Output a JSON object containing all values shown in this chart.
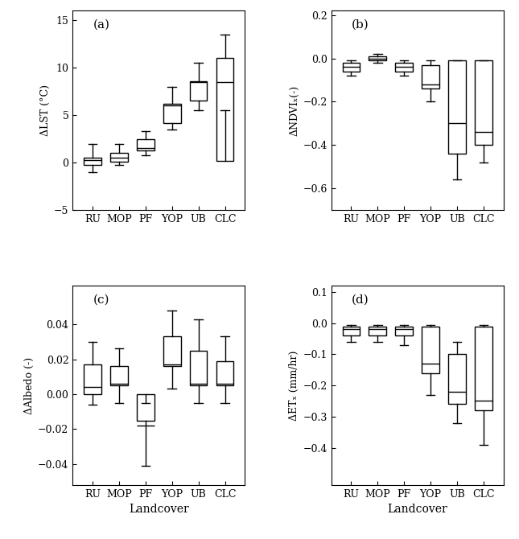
{
  "categories": [
    "RU",
    "MOP",
    "PF",
    "YOP",
    "UB",
    "CLC"
  ],
  "panel_a": {
    "ylabel": "ΔLST (°C)",
    "ylim": [
      -5,
      16
    ],
    "yticks": [
      -5,
      0,
      5,
      10,
      15
    ],
    "boxes": [
      {
        "q1": -0.2,
        "median": 0.3,
        "q3": 0.5,
        "whislo": -1.0,
        "whishi": 2.0
      },
      {
        "q1": 0.1,
        "median": 0.5,
        "q3": 1.0,
        "whislo": -0.2,
        "whishi": 2.0
      },
      {
        "q1": 1.3,
        "median": 1.5,
        "q3": 2.5,
        "whislo": 0.8,
        "whishi": 3.3
      },
      {
        "q1": 4.2,
        "median": 6.0,
        "q3": 6.2,
        "whislo": 3.5,
        "whishi": 8.0
      },
      {
        "q1": 6.5,
        "median": 8.5,
        "q3": 8.6,
        "whislo": 5.5,
        "whishi": 10.5
      },
      {
        "q1": 0.2,
        "median": 8.5,
        "q3": 11.0,
        "whislo": 5.5,
        "whishi": 13.5
      }
    ]
  },
  "panel_b": {
    "ylabel": "ΔNDVIₓ(-)",
    "ylim": [
      -0.7,
      0.22
    ],
    "yticks": [
      -0.6,
      -0.4,
      -0.2,
      0.0,
      0.2
    ],
    "boxes": [
      {
        "q1": -0.06,
        "median": -0.04,
        "q3": -0.02,
        "whislo": -0.08,
        "whishi": -0.01
      },
      {
        "q1": -0.01,
        "median": 0.0,
        "q3": 0.01,
        "whislo": -0.02,
        "whishi": 0.02
      },
      {
        "q1": -0.06,
        "median": -0.04,
        "q3": -0.02,
        "whislo": -0.08,
        "whishi": -0.01
      },
      {
        "q1": -0.14,
        "median": -0.12,
        "q3": -0.03,
        "whislo": -0.2,
        "whishi": -0.01
      },
      {
        "q1": -0.44,
        "median": -0.3,
        "q3": -0.01,
        "whislo": -0.56,
        "whishi": -0.01
      },
      {
        "q1": -0.4,
        "median": -0.34,
        "q3": -0.01,
        "whislo": -0.48,
        "whishi": -0.01
      }
    ]
  },
  "panel_c": {
    "ylabel": "ΔAlbedo (-)",
    "ylim": [
      -0.052,
      0.062
    ],
    "yticks": [
      -0.04,
      -0.02,
      0.0,
      0.02,
      0.04
    ],
    "boxes": [
      {
        "q1": 0.0,
        "median": 0.004,
        "q3": 0.017,
        "whislo": -0.006,
        "whishi": 0.03
      },
      {
        "q1": 0.005,
        "median": 0.006,
        "q3": 0.016,
        "whislo": -0.005,
        "whishi": 0.026
      },
      {
        "q1": -0.015,
        "median": -0.018,
        "q3": 0.0,
        "whislo": -0.041,
        "whishi": -0.005
      },
      {
        "q1": 0.016,
        "median": 0.017,
        "q3": 0.033,
        "whislo": 0.003,
        "whishi": 0.048
      },
      {
        "q1": 0.005,
        "median": 0.006,
        "q3": 0.025,
        "whislo": -0.005,
        "whishi": 0.043
      },
      {
        "q1": 0.005,
        "median": 0.006,
        "q3": 0.019,
        "whislo": -0.005,
        "whishi": 0.033
      }
    ]
  },
  "panel_d": {
    "ylabel": "ΔETₓ (mm/hr)",
    "ylim": [
      -0.52,
      0.12
    ],
    "yticks": [
      -0.4,
      -0.3,
      -0.2,
      -0.1,
      0.0,
      0.1
    ],
    "boxes": [
      {
        "q1": -0.04,
        "median": -0.02,
        "q3": -0.01,
        "whislo": -0.06,
        "whishi": -0.005
      },
      {
        "q1": -0.04,
        "median": -0.02,
        "q3": -0.01,
        "whislo": -0.06,
        "whishi": -0.005
      },
      {
        "q1": -0.04,
        "median": -0.02,
        "q3": -0.01,
        "whislo": -0.07,
        "whishi": -0.005
      },
      {
        "q1": -0.16,
        "median": -0.13,
        "q3": -0.01,
        "whislo": -0.23,
        "whishi": -0.005
      },
      {
        "q1": -0.26,
        "median": -0.22,
        "q3": -0.1,
        "whislo": -0.32,
        "whishi": -0.06
      },
      {
        "q1": -0.28,
        "median": -0.25,
        "q3": -0.01,
        "whislo": -0.39,
        "whishi": -0.005
      }
    ]
  },
  "bar_color": "white",
  "edge_color": "black",
  "median_color": "black",
  "whisker_color": "black",
  "cap_color": "black",
  "linewidth": 1.0,
  "box_width": 0.65,
  "figsize": [
    6.45,
    6.7
  ],
  "dpi": 100
}
